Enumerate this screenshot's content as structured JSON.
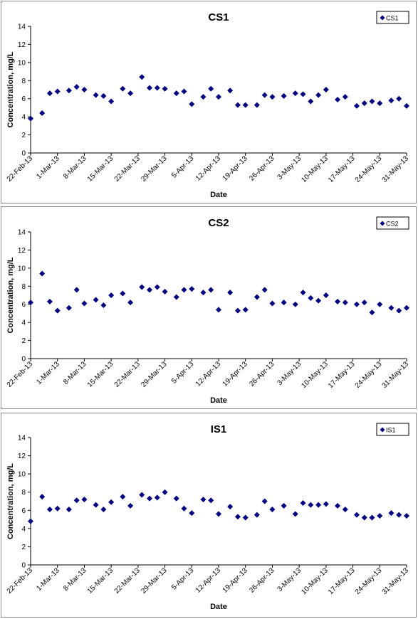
{
  "chart_data": [
    {
      "type": "scatter",
      "title": "CS1",
      "xlabel": "Date",
      "ylabel": "Concentration, mg/L",
      "ylim": [
        0,
        14
      ],
      "yticks": [
        0,
        2,
        4,
        6,
        8,
        10,
        12,
        14
      ],
      "xlim": [
        "2013-02-22",
        "2013-05-31"
      ],
      "xtick_labels": [
        "22-Feb-13",
        "1-Mar-13",
        "8-Mar-13",
        "15-Mar-13",
        "22-Mar-13",
        "29-Mar-13",
        "5-Apr-13",
        "12-Apr-13",
        "19-Apr-13",
        "26-Apr-13",
        "3-May-13",
        "10-May-13",
        "17-May-13",
        "24-May-13",
        "31-May-13"
      ],
      "grid": false,
      "legend": "top-right",
      "marker": "diamond",
      "marker_color": "#000080",
      "series": [
        {
          "name": "CS1",
          "points": [
            [
              "2013-02-22",
              3.8
            ],
            [
              "2013-02-25",
              4.4
            ],
            [
              "2013-02-27",
              6.6
            ],
            [
              "2013-03-01",
              6.8
            ],
            [
              "2013-03-04",
              6.9
            ],
            [
              "2013-03-06",
              7.3
            ],
            [
              "2013-03-08",
              7.0
            ],
            [
              "2013-03-11",
              6.4
            ],
            [
              "2013-03-13",
              6.3
            ],
            [
              "2013-03-15",
              5.7
            ],
            [
              "2013-03-18",
              7.1
            ],
            [
              "2013-03-20",
              6.6
            ],
            [
              "2013-03-23",
              8.4
            ],
            [
              "2013-03-25",
              7.2
            ],
            [
              "2013-03-27",
              7.2
            ],
            [
              "2013-03-29",
              7.1
            ],
            [
              "2013-04-01",
              6.6
            ],
            [
              "2013-04-03",
              6.8
            ],
            [
              "2013-04-05",
              5.4
            ],
            [
              "2013-04-08",
              6.2
            ],
            [
              "2013-04-10",
              7.1
            ],
            [
              "2013-04-12",
              6.2
            ],
            [
              "2013-04-15",
              6.9
            ],
            [
              "2013-04-17",
              5.3
            ],
            [
              "2013-04-19",
              5.3
            ],
            [
              "2013-04-22",
              5.3
            ],
            [
              "2013-04-24",
              6.4
            ],
            [
              "2013-04-26",
              6.2
            ],
            [
              "2013-04-29",
              6.3
            ],
            [
              "2013-05-02",
              6.6
            ],
            [
              "2013-05-04",
              6.5
            ],
            [
              "2013-05-06",
              5.7
            ],
            [
              "2013-05-08",
              6.4
            ],
            [
              "2013-05-10",
              7.0
            ],
            [
              "2013-05-13",
              5.9
            ],
            [
              "2013-05-15",
              6.2
            ],
            [
              "2013-05-18",
              5.2
            ],
            [
              "2013-05-20",
              5.5
            ],
            [
              "2013-05-22",
              5.7
            ],
            [
              "2013-05-24",
              5.5
            ],
            [
              "2013-05-27",
              5.8
            ],
            [
              "2013-05-29",
              6.0
            ],
            [
              "2013-05-31",
              5.2
            ]
          ]
        }
      ]
    },
    {
      "type": "scatter",
      "title": "CS2",
      "xlabel": "Date",
      "ylabel": "Concentration, mg/L",
      "ylim": [
        0,
        14
      ],
      "yticks": [
        0,
        2,
        4,
        6,
        8,
        10,
        12,
        14
      ],
      "xlim": [
        "2013-02-22",
        "2013-05-31"
      ],
      "xtick_labels": [
        "22-Feb-13",
        "1-Mar-13",
        "8-Mar-13",
        "15-Mar-13",
        "22-Mar-13",
        "29-Mar-13",
        "5-Apr-13",
        "12-Apr-13",
        "19-Apr-13",
        "26-Apr-13",
        "3-May-13",
        "10-May-13",
        "17-May-13",
        "24-May-13",
        "31-May-13"
      ],
      "grid": false,
      "legend": "top-right",
      "marker": "diamond",
      "marker_color": "#000080",
      "series": [
        {
          "name": "CS2",
          "points": [
            [
              "2013-02-22",
              6.2
            ],
            [
              "2013-02-25",
              9.4
            ],
            [
              "2013-02-27",
              6.3
            ],
            [
              "2013-03-01",
              5.3
            ],
            [
              "2013-03-04",
              5.6
            ],
            [
              "2013-03-06",
              7.6
            ],
            [
              "2013-03-08",
              6.1
            ],
            [
              "2013-03-11",
              6.5
            ],
            [
              "2013-03-13",
              5.9
            ],
            [
              "2013-03-15",
              7.0
            ],
            [
              "2013-03-18",
              7.2
            ],
            [
              "2013-03-20",
              6.2
            ],
            [
              "2013-03-23",
              7.9
            ],
            [
              "2013-03-25",
              7.6
            ],
            [
              "2013-03-27",
              7.9
            ],
            [
              "2013-03-29",
              7.4
            ],
            [
              "2013-04-01",
              6.8
            ],
            [
              "2013-04-03",
              7.6
            ],
            [
              "2013-04-05",
              7.7
            ],
            [
              "2013-04-08",
              7.3
            ],
            [
              "2013-04-10",
              7.6
            ],
            [
              "2013-04-12",
              5.4
            ],
            [
              "2013-04-15",
              7.3
            ],
            [
              "2013-04-17",
              5.3
            ],
            [
              "2013-04-19",
              5.4
            ],
            [
              "2013-04-22",
              6.8
            ],
            [
              "2013-04-24",
              7.6
            ],
            [
              "2013-04-26",
              6.1
            ],
            [
              "2013-04-29",
              6.2
            ],
            [
              "2013-05-02",
              6.0
            ],
            [
              "2013-05-04",
              7.3
            ],
            [
              "2013-05-06",
              6.7
            ],
            [
              "2013-05-08",
              6.4
            ],
            [
              "2013-05-10",
              7.0
            ],
            [
              "2013-05-13",
              6.3
            ],
            [
              "2013-05-15",
              6.2
            ],
            [
              "2013-05-18",
              6.0
            ],
            [
              "2013-05-20",
              6.2
            ],
            [
              "2013-05-22",
              5.1
            ],
            [
              "2013-05-24",
              6.0
            ],
            [
              "2013-05-27",
              5.6
            ],
            [
              "2013-05-29",
              5.3
            ],
            [
              "2013-05-31",
              5.6
            ]
          ]
        }
      ]
    },
    {
      "type": "scatter",
      "title": "IS1",
      "xlabel": "Date",
      "ylabel": "Concentration, mg/L",
      "ylim": [
        0,
        14
      ],
      "yticks": [
        0,
        2,
        4,
        6,
        8,
        10,
        12,
        14
      ],
      "xlim": [
        "2013-02-22",
        "2013-05-31"
      ],
      "xtick_labels": [
        "22-Feb-13",
        "1-Mar-13",
        "8-Mar-13",
        "15-Mar-13",
        "22-Mar-13",
        "29-Mar-13",
        "5-Apr-13",
        "12-Apr-13",
        "19-Apr-13",
        "26-Apr-13",
        "3-May-13",
        "10-May-13",
        "17-May-13",
        "24-May-13",
        "31-May-13"
      ],
      "grid": false,
      "legend": "top-right",
      "marker": "diamond",
      "marker_color": "#000080",
      "series": [
        {
          "name": "IS1",
          "points": [
            [
              "2013-02-22",
              4.8
            ],
            [
              "2013-02-25",
              7.5
            ],
            [
              "2013-02-27",
              6.1
            ],
            [
              "2013-03-01",
              6.2
            ],
            [
              "2013-03-04",
              6.1
            ],
            [
              "2013-03-06",
              7.1
            ],
            [
              "2013-03-08",
              7.2
            ],
            [
              "2013-03-11",
              6.6
            ],
            [
              "2013-03-13",
              6.1
            ],
            [
              "2013-03-15",
              6.9
            ],
            [
              "2013-03-18",
              7.5
            ],
            [
              "2013-03-20",
              6.5
            ],
            [
              "2013-03-23",
              7.7
            ],
            [
              "2013-03-25",
              7.3
            ],
            [
              "2013-03-27",
              7.4
            ],
            [
              "2013-03-29",
              8.0
            ],
            [
              "2013-04-01",
              7.3
            ],
            [
              "2013-04-03",
              6.2
            ],
            [
              "2013-04-05",
              5.7
            ],
            [
              "2013-04-08",
              7.2
            ],
            [
              "2013-04-10",
              7.1
            ],
            [
              "2013-04-12",
              5.6
            ],
            [
              "2013-04-15",
              6.4
            ],
            [
              "2013-04-17",
              5.3
            ],
            [
              "2013-04-19",
              5.2
            ],
            [
              "2013-04-22",
              5.5
            ],
            [
              "2013-04-24",
              7.0
            ],
            [
              "2013-04-26",
              6.1
            ],
            [
              "2013-04-29",
              6.5
            ],
            [
              "2013-05-02",
              5.6
            ],
            [
              "2013-05-04",
              6.8
            ],
            [
              "2013-05-06",
              6.6
            ],
            [
              "2013-05-08",
              6.6
            ],
            [
              "2013-05-10",
              6.7
            ],
            [
              "2013-05-13",
              6.5
            ],
            [
              "2013-05-15",
              6.1
            ],
            [
              "2013-05-18",
              5.5
            ],
            [
              "2013-05-20",
              5.2
            ],
            [
              "2013-05-22",
              5.2
            ],
            [
              "2013-05-24",
              5.4
            ],
            [
              "2013-05-27",
              5.7
            ],
            [
              "2013-05-29",
              5.5
            ],
            [
              "2013-05-31",
              5.4
            ]
          ]
        }
      ]
    }
  ]
}
